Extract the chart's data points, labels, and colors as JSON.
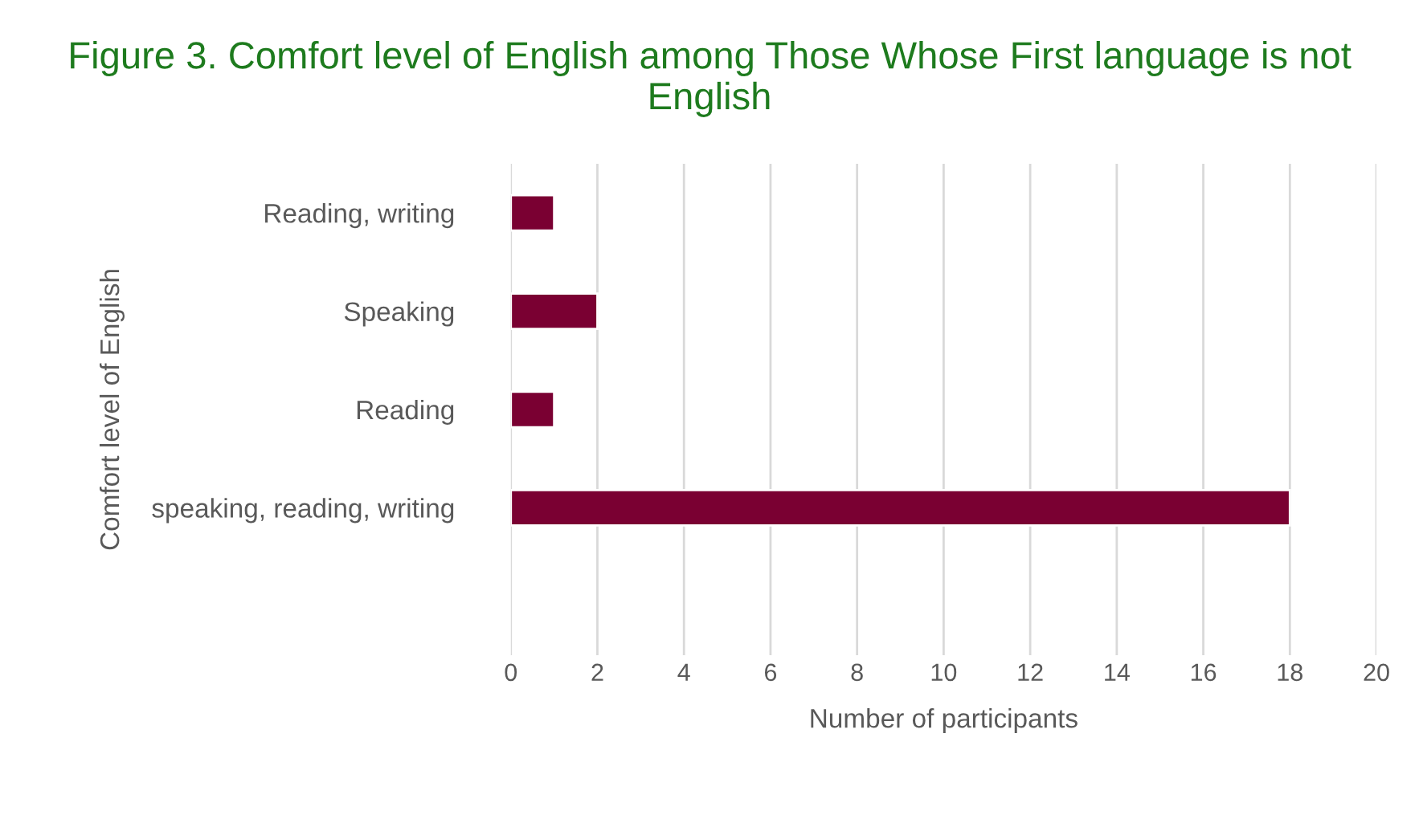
{
  "chart_data": {
    "type": "bar",
    "orientation": "horizontal",
    "title": "Figure 3. Comfort level of English among Those Whose First language is not English",
    "xlabel": "Number of participants",
    "ylabel": "Comfort level of English",
    "categories": [
      "Reading, writing",
      "Speaking",
      "Reading",
      "speaking, reading, writing",
      null
    ],
    "values": [
      1,
      2,
      1,
      18,
      null
    ],
    "color": "#7a0032",
    "xlim": [
      0,
      20
    ],
    "xticks": [
      0,
      2,
      4,
      6,
      8,
      10,
      12,
      14,
      16,
      18,
      20
    ],
    "grid": "x",
    "legend": false
  }
}
